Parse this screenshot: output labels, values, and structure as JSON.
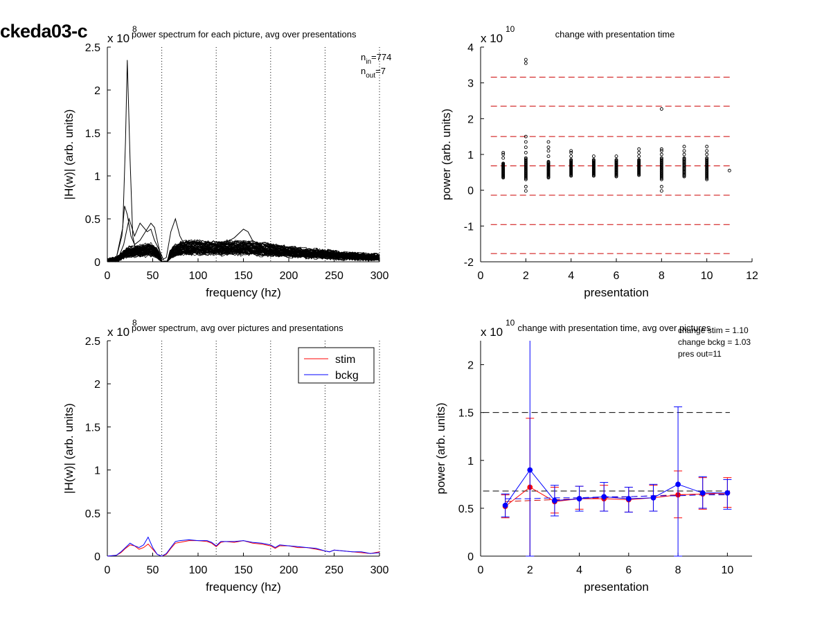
{
  "figure_label": "ckeda03-c",
  "colors": {
    "stim": "#ff0000",
    "bckg": "#0000ff",
    "line": "#000000",
    "dash_red": "#cc0000",
    "dash_black": "#000000"
  },
  "chart_data": [
    {
      "id": "p1",
      "type": "line",
      "title": "power spectrum for each picture, avg over presentations",
      "xlabel": "frequency (hz)",
      "ylabel": "|H(w)| (arb. units)",
      "exponent_base": "x 10",
      "exponent_power": "8",
      "xlim": [
        0,
        300
      ],
      "ylim": [
        0,
        2.5
      ],
      "xticks": [
        0,
        50,
        100,
        150,
        200,
        250,
        300
      ],
      "yticks": [
        0,
        0.5,
        1,
        1.5,
        2,
        2.5
      ],
      "ytick_labels": [
        "0",
        "0.5",
        "1",
        "1.5",
        "2",
        "2.5"
      ],
      "vlines_dotted": [
        60,
        120,
        180,
        240,
        300
      ],
      "annotations": [
        {
          "main": "n",
          "sub": "in",
          "rest": "=774"
        },
        {
          "main": "n",
          "sub": "out",
          "rest": "=7"
        }
      ],
      "traces": 60,
      "envelope": {
        "x": [
          0,
          10,
          18,
          22,
          28,
          35,
          42,
          48,
          55,
          60,
          65,
          70,
          80,
          100,
          120,
          140,
          160,
          180,
          200,
          220,
          240,
          260,
          280,
          300
        ],
        "y": [
          0.01,
          0.03,
          0.08,
          0.12,
          0.12,
          0.13,
          0.14,
          0.15,
          0.1,
          0.02,
          0.0,
          0.1,
          0.16,
          0.17,
          0.16,
          0.17,
          0.16,
          0.14,
          0.12,
          0.1,
          0.09,
          0.07,
          0.06,
          0.05
        ]
      },
      "outliers": [
        {
          "x": [
            0,
            10,
            17,
            20,
            22,
            25,
            28,
            32,
            38,
            45,
            50,
            55,
            60
          ],
          "y": [
            0.01,
            0.05,
            0.4,
            1.4,
            2.35,
            1.2,
            0.3,
            0.1,
            0.12,
            0.2,
            0.18,
            0.1,
            0.02
          ]
        },
        {
          "x": [
            0,
            10,
            16,
            19,
            22,
            26,
            30,
            36,
            42,
            48,
            52,
            56,
            60
          ],
          "y": [
            0.01,
            0.05,
            0.3,
            0.65,
            0.55,
            0.3,
            0.2,
            0.25,
            0.35,
            0.45,
            0.4,
            0.2,
            0.03
          ]
        },
        {
          "x": [
            0,
            12,
            18,
            24,
            30,
            36,
            44,
            48,
            52,
            58,
            62
          ],
          "y": [
            0.01,
            0.04,
            0.2,
            0.5,
            0.3,
            0.45,
            0.35,
            0.38,
            0.25,
            0.12,
            0.02
          ]
        },
        {
          "x": [
            60,
            65,
            70,
            75,
            80,
            85,
            90
          ],
          "y": [
            0.02,
            0.05,
            0.35,
            0.5,
            0.3,
            0.2,
            0.15
          ]
        },
        {
          "x": [
            120,
            130,
            140,
            150,
            155,
            160,
            170
          ],
          "y": [
            0.15,
            0.22,
            0.28,
            0.38,
            0.35,
            0.25,
            0.18
          ]
        }
      ]
    },
    {
      "id": "p2",
      "type": "scatter",
      "title": "change with presentation time",
      "xlabel": "presentation",
      "ylabel": "power (arb. units)",
      "exponent_base": "x 10",
      "exponent_power": "10",
      "xlim": [
        0,
        12
      ],
      "ylim": [
        -2,
        4
      ],
      "xticks": [
        0,
        2,
        4,
        6,
        8,
        10,
        12
      ],
      "yticks": [
        -2,
        -1,
        0,
        1,
        2,
        3,
        4
      ],
      "ytick_labels": [
        "-2",
        "-1",
        "0",
        "1",
        "2",
        "3",
        "4"
      ],
      "hlines_dashed_red": [
        3.16,
        2.35,
        1.5,
        0.68,
        -0.14,
        -0.96,
        -1.77
      ],
      "points": [
        {
          "x": 1,
          "low": 0.35,
          "high": 0.75,
          "extra": [
            0.9,
            1.0,
            1.05
          ]
        },
        {
          "x": 2,
          "low": 0.3,
          "high": 0.9,
          "extra": [
            1.05,
            1.2,
            1.35,
            1.5,
            0.1,
            -0.02,
            3.55,
            3.65
          ]
        },
        {
          "x": 3,
          "low": 0.35,
          "high": 0.8,
          "extra": [
            0.95,
            1.1,
            1.2,
            1.35
          ]
        },
        {
          "x": 4,
          "low": 0.4,
          "high": 0.85,
          "extra": [
            0.95,
            1.05,
            1.1
          ]
        },
        {
          "x": 5,
          "low": 0.4,
          "high": 0.85,
          "extra": [
            0.95
          ]
        },
        {
          "x": 6,
          "low": 0.38,
          "high": 0.85,
          "extra": [
            0.95
          ]
        },
        {
          "x": 7,
          "low": 0.42,
          "high": 0.85,
          "extra": [
            0.95,
            1.05,
            1.15
          ]
        },
        {
          "x": 8,
          "low": 0.3,
          "high": 0.9,
          "extra": [
            1.0,
            1.1,
            1.15,
            0.1,
            -0.02,
            2.27
          ]
        },
        {
          "x": 9,
          "low": 0.38,
          "high": 0.9,
          "extra": [
            1.0,
            1.1,
            1.22
          ]
        },
        {
          "x": 10,
          "low": 0.3,
          "high": 0.9,
          "extra": [
            1.0,
            1.1,
            1.22
          ]
        },
        {
          "x": 11,
          "low": 0.55,
          "high": 0.55,
          "extra": []
        }
      ]
    },
    {
      "id": "p3",
      "type": "line",
      "title": "power spectrum, avg over pictures and presentations",
      "xlabel": "frequency (hz)",
      "ylabel": "|H(w)| (arb. units)",
      "exponent_base": "x 10",
      "exponent_power": "8",
      "xlim": [
        0,
        300
      ],
      "ylim": [
        0,
        2.5
      ],
      "xticks": [
        0,
        50,
        100,
        150,
        200,
        250,
        300
      ],
      "yticks": [
        0,
        0.5,
        1,
        1.5,
        2,
        2.5
      ],
      "ytick_labels": [
        "0",
        "0.5",
        "1",
        "1.5",
        "2",
        "2.5"
      ],
      "vlines_dotted": [
        60,
        120,
        180,
        240,
        300
      ],
      "legend": {
        "position": "top-right",
        "entries": [
          "stim",
          "bckg"
        ]
      },
      "x": [
        0,
        10,
        15,
        20,
        25,
        30,
        35,
        40,
        45,
        50,
        55,
        60,
        65,
        70,
        75,
        80,
        90,
        100,
        110,
        115,
        120,
        125,
        130,
        140,
        150,
        160,
        170,
        180,
        185,
        190,
        200,
        210,
        220,
        230,
        240,
        245,
        250,
        260,
        270,
        280,
        290,
        300
      ],
      "series": [
        {
          "name": "stim",
          "values": [
            0.0,
            0.01,
            0.04,
            0.09,
            0.13,
            0.12,
            0.08,
            0.1,
            0.14,
            0.08,
            0.02,
            0.0,
            0.02,
            0.09,
            0.15,
            0.16,
            0.18,
            0.18,
            0.17,
            0.15,
            0.11,
            0.16,
            0.17,
            0.16,
            0.18,
            0.15,
            0.14,
            0.12,
            0.09,
            0.12,
            0.12,
            0.1,
            0.1,
            0.08,
            0.06,
            0.05,
            0.07,
            0.06,
            0.05,
            0.04,
            0.03,
            0.05
          ]
        },
        {
          "name": "bckg",
          "values": [
            0.0,
            0.01,
            0.05,
            0.1,
            0.15,
            0.12,
            0.1,
            0.13,
            0.22,
            0.1,
            0.02,
            0.0,
            0.03,
            0.1,
            0.17,
            0.18,
            0.19,
            0.18,
            0.18,
            0.16,
            0.12,
            0.17,
            0.17,
            0.17,
            0.18,
            0.16,
            0.15,
            0.13,
            0.1,
            0.13,
            0.12,
            0.11,
            0.1,
            0.09,
            0.06,
            0.05,
            0.07,
            0.06,
            0.05,
            0.05,
            0.03,
            0.04
          ]
        }
      ]
    },
    {
      "id": "p4",
      "type": "line",
      "title": "change with presentation time, avg over pictures",
      "xlabel": "presentation",
      "ylabel": "power (arb. units)",
      "exponent_base": "x 10",
      "exponent_power": "10",
      "xlim": [
        0,
        11
      ],
      "ylim": [
        0,
        2.25
      ],
      "xticks": [
        0,
        2,
        4,
        6,
        8,
        10
      ],
      "yticks": [
        0,
        0.5,
        1,
        1.5,
        2
      ],
      "ytick_labels": [
        "0",
        "0.5",
        "1",
        "1.5",
        "2"
      ],
      "hlines_dashed_black": [
        1.5,
        0.68
      ],
      "annotations": [
        "change stim = 1.10",
        "change bckg = 1.03",
        "pres out=11"
      ],
      "x": [
        1,
        2,
        3,
        4,
        5,
        6,
        7,
        8,
        9,
        10
      ],
      "series": [
        {
          "name": "stim",
          "values": [
            0.52,
            0.72,
            0.57,
            0.6,
            0.6,
            0.59,
            0.61,
            0.64,
            0.65,
            0.66
          ],
          "err_low": [
            0.4,
            0.0,
            0.45,
            0.49,
            0.47,
            0.46,
            0.47,
            0.4,
            0.49,
            0.51
          ],
          "err_high": [
            0.64,
            1.44,
            0.72,
            0.73,
            0.74,
            0.72,
            0.74,
            0.89,
            0.82,
            0.82
          ],
          "fit": [
            0.57,
            0.58,
            0.59,
            0.6,
            0.61,
            0.62,
            0.63,
            0.64,
            0.65,
            0.65
          ]
        },
        {
          "name": "bckg",
          "values": [
            0.53,
            0.9,
            0.58,
            0.6,
            0.62,
            0.6,
            0.61,
            0.75,
            0.66,
            0.66
          ],
          "err_low": [
            0.41,
            0.0,
            0.42,
            0.47,
            0.47,
            0.46,
            0.47,
            0.0,
            0.5,
            0.49
          ],
          "err_high": [
            0.65,
            2.3,
            0.74,
            0.73,
            0.77,
            0.72,
            0.75,
            1.56,
            0.83,
            0.8
          ],
          "fit": [
            0.6,
            0.6,
            0.61,
            0.61,
            0.62,
            0.62,
            0.63,
            0.63,
            0.64,
            0.64
          ]
        }
      ]
    }
  ]
}
